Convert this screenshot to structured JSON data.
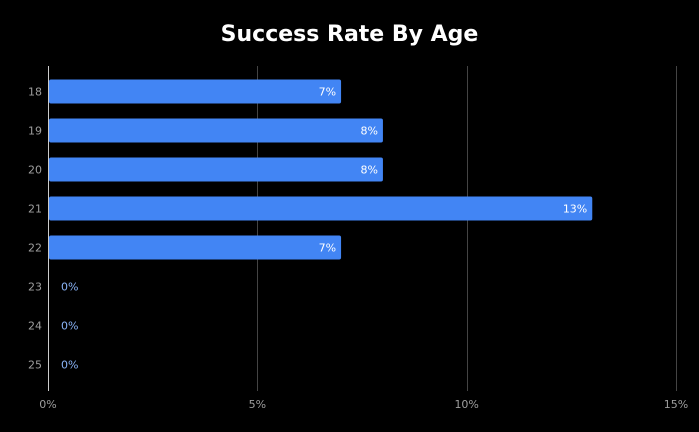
{
  "chart_data": {
    "type": "bar",
    "orientation": "horizontal",
    "title": "Success Rate By Age",
    "xlabel": "",
    "ylabel": "",
    "categories": [
      "18",
      "19",
      "20",
      "21",
      "22",
      "23",
      "24",
      "25"
    ],
    "values": [
      7,
      8,
      8,
      13,
      7,
      0,
      0,
      0
    ],
    "data_labels": [
      "7%",
      "8%",
      "8%",
      "13%",
      "7%",
      "0%",
      "0%",
      "0%"
    ],
    "xlim": [
      0,
      15
    ],
    "x_ticks": [
      0,
      5,
      10,
      15
    ],
    "x_tick_labels": [
      "0%",
      "5%",
      "10%",
      "15%"
    ],
    "grid": "vertical",
    "legend": "none",
    "colors": {
      "background": "#000000",
      "bar": "#4285f4",
      "grid": "#444444",
      "axis": "#cccccc",
      "tick_text": "#9e9e9e",
      "label_inside": "#ffffff",
      "label_outside": "#8ab4f8",
      "title": "#ffffff"
    }
  }
}
